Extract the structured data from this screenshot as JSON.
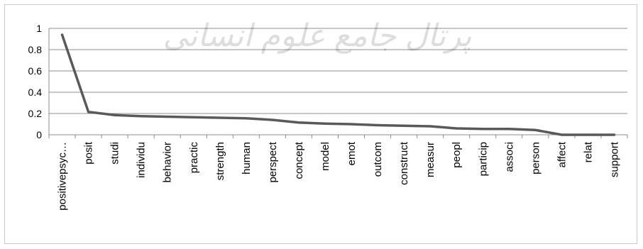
{
  "chart_data": {
    "type": "line",
    "title": "",
    "xlabel": "",
    "ylabel": "",
    "ylim": [
      0,
      1
    ],
    "yticks": [
      "0",
      "0.2",
      "0.4",
      "0.6",
      "0.8",
      "1"
    ],
    "grid": "horizontal",
    "legend": "none",
    "line_color": "#595959",
    "categories": [
      "positivepsyc…",
      "posit",
      "studi",
      "individu",
      "behavior",
      "practic",
      "strength",
      "human",
      "perspect",
      "concept",
      "model",
      "emot",
      "outcom",
      "construct",
      "measur",
      "peopl",
      "particip",
      "associ",
      "person",
      "affect",
      "relat",
      "support"
    ],
    "series": [
      {
        "name": "",
        "values": [
          0.94,
          0.215,
          0.185,
          0.175,
          0.17,
          0.165,
          0.16,
          0.155,
          0.14,
          0.115,
          0.105,
          0.1,
          0.09,
          0.085,
          0.08,
          0.06,
          0.055,
          0.055,
          0.045,
          0.0,
          0.0,
          0.0
        ]
      }
    ]
  },
  "watermark": {
    "text": "پرتال جامع علوم انسانی",
    "color": "#9e9e9e"
  }
}
